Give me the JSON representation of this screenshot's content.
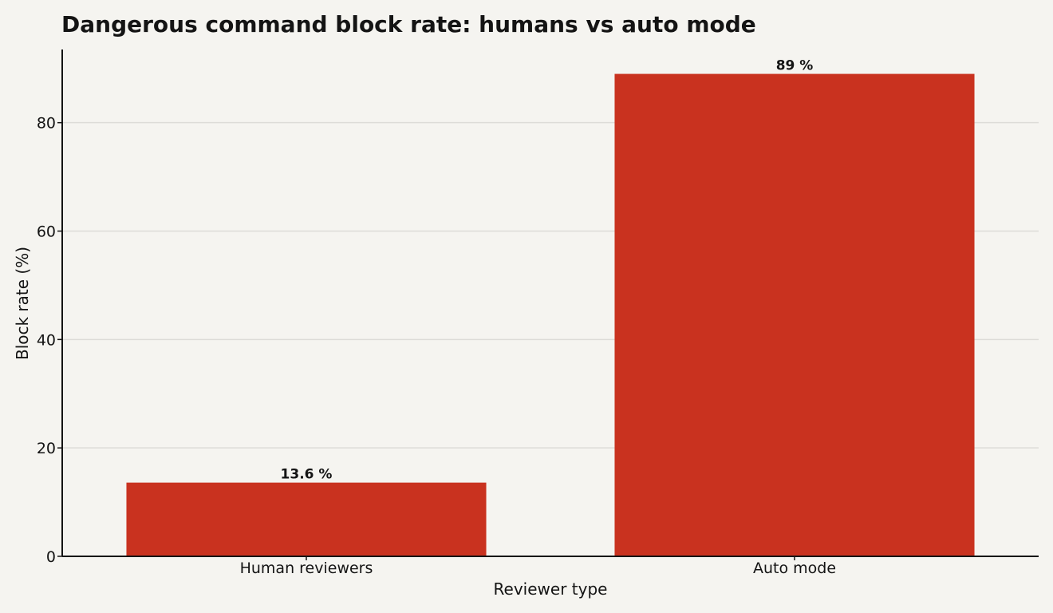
{
  "chart_data": {
    "type": "bar",
    "title": "Dangerous command block rate: humans vs auto mode",
    "xlabel": "Reviewer type",
    "ylabel": "Block rate (%)",
    "categories": [
      "Human reviewers",
      "Auto mode"
    ],
    "values": [
      13.6,
      89
    ],
    "data_labels": [
      "13.6 %",
      "89 %"
    ],
    "yticks": [
      0,
      20,
      40,
      60,
      80
    ],
    "ylim": [
      0,
      93.5
    ],
    "grid": true,
    "legend": "none",
    "bar_color": "#c9321f",
    "grid_color": "#dddcd8",
    "axis_color": "#141414",
    "background_color": "#f5f4f0"
  }
}
